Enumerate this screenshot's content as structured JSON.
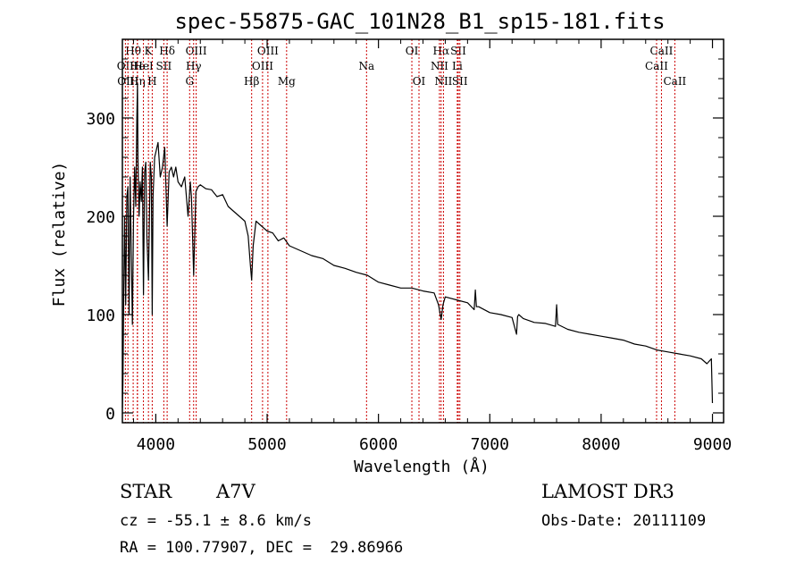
{
  "chart_data": {
    "type": "line",
    "title": "spec-55875-GAC_101N28_B1_sp15-181.fits",
    "xlabel": "Wavelength (Å)",
    "ylabel": "Flux (relative)",
    "xlim": [
      3700,
      9100
    ],
    "ylim": [
      -10,
      380
    ],
    "xticks": [
      4000,
      5000,
      6000,
      7000,
      8000,
      9000
    ],
    "yticks": [
      0,
      100,
      200,
      300
    ],
    "grid": false,
    "line_color": "#000000",
    "marker_color": "#cc0000",
    "series": [
      {
        "name": "spectrum",
        "x": [
          3700,
          3705,
          3712,
          3720,
          3730,
          3740,
          3750,
          3760,
          3770,
          3780,
          3790,
          3800,
          3810,
          3820,
          3830,
          3836,
          3840,
          3850,
          3860,
          3870,
          3880,
          3889,
          3900,
          3910,
          3920,
          3934,
          3950,
          3960,
          3968,
          3975,
          3990,
          4000,
          4020,
          4040,
          4060,
          4080,
          4102,
          4120,
          4140,
          4160,
          4180,
          4200,
          4230,
          4260,
          4290,
          4310,
          4320,
          4340,
          4360,
          4380,
          4400,
          4450,
          4500,
          4550,
          4600,
          4650,
          4700,
          4750,
          4800,
          4830,
          4850,
          4861,
          4875,
          4900,
          4950,
          5000,
          5050,
          5100,
          5150,
          5200,
          5300,
          5400,
          5500,
          5600,
          5700,
          5800,
          5900,
          6000,
          6100,
          6200,
          6300,
          6400,
          6500,
          6540,
          6563,
          6580,
          6600,
          6700,
          6800,
          6860,
          6870,
          6880,
          6900,
          7000,
          7100,
          7200,
          7240,
          7250,
          7260,
          7300,
          7400,
          7500,
          7590,
          7600,
          7610,
          7700,
          7800,
          7900,
          8000,
          8100,
          8200,
          8300,
          8400,
          8500,
          8600,
          8700,
          8800,
          8900,
          8950,
          8990,
          9000
        ],
        "values": [
          5,
          30,
          120,
          200,
          110,
          220,
          230,
          100,
          240,
          160,
          90,
          200,
          250,
          210,
          300,
          335,
          260,
          200,
          235,
          215,
          250,
          120,
          245,
          255,
          180,
          135,
          255,
          240,
          100,
          220,
          260,
          265,
          275,
          240,
          250,
          270,
          190,
          245,
          250,
          240,
          250,
          235,
          230,
          240,
          200,
          235,
          220,
          140,
          225,
          230,
          232,
          228,
          227,
          220,
          222,
          210,
          205,
          200,
          195,
          180,
          150,
          135,
          170,
          195,
          190,
          185,
          183,
          175,
          178,
          170,
          165,
          160,
          157,
          150,
          147,
          143,
          140,
          133,
          130,
          127,
          127,
          124,
          122,
          110,
          95,
          110,
          118,
          115,
          112,
          105,
          125,
          108,
          108,
          102,
          100,
          97,
          80,
          98,
          100,
          96,
          92,
          91,
          88,
          110,
          90,
          85,
          82,
          80,
          78,
          76,
          74,
          70,
          68,
          64,
          62,
          60,
          58,
          55,
          50,
          55,
          10
        ]
      }
    ],
    "line_markers": [
      {
        "label": "Hθ",
        "wave": 3797,
        "row": 1
      },
      {
        "label": "OII",
        "wave": 3727,
        "row": 2
      },
      {
        "label": "OIII",
        "wave": 3750,
        "row": 3
      },
      {
        "label": "He",
        "wave": 3835,
        "row": 2
      },
      {
        "label": "Hη",
        "wave": 3835,
        "row": 3
      },
      {
        "label": "K",
        "wave": 3934,
        "row": 1
      },
      {
        "label": "HeI",
        "wave": 3889,
        "row": 2
      },
      {
        "label": "H",
        "wave": 3968,
        "row": 3
      },
      {
        "label": "Hδ",
        "wave": 4102,
        "row": 1
      },
      {
        "label": "SII",
        "wave": 4072,
        "row": 2
      },
      {
        "label": "OIII",
        "wave": 4363,
        "row": 1
      },
      {
        "label": "Hγ",
        "wave": 4340,
        "row": 2
      },
      {
        "label": "G",
        "wave": 4304,
        "row": 3
      },
      {
        "label": "Hβ",
        "wave": 4861,
        "row": 3
      },
      {
        "label": "OIII",
        "wave": 5007,
        "row": 1
      },
      {
        "label": "OIII",
        "wave": 4959,
        "row": 2
      },
      {
        "label": "Mg",
        "wave": 5175,
        "row": 3
      },
      {
        "label": "Na",
        "wave": 5893,
        "row": 2
      },
      {
        "label": "OI",
        "wave": 6300,
        "row": 1
      },
      {
        "label": "OI",
        "wave": 6364,
        "row": 3
      },
      {
        "label": "Hα",
        "wave": 6563,
        "row": 1
      },
      {
        "label": "SII",
        "wave": 6717,
        "row": 1
      },
      {
        "label": "NII",
        "wave": 6548,
        "row": 2
      },
      {
        "label": "Li",
        "wave": 6708,
        "row": 2
      },
      {
        "label": "NII",
        "wave": 6584,
        "row": 3
      },
      {
        "label": "SII",
        "wave": 6731,
        "row": 3
      },
      {
        "label": "CaII",
        "wave": 8542,
        "row": 1
      },
      {
        "label": "CaII",
        "wave": 8498,
        "row": 2
      },
      {
        "label": "CaII",
        "wave": 8662,
        "row": 3
      }
    ]
  },
  "info": {
    "class_label": "STAR",
    "subclass": "A7V",
    "survey": "LAMOST DR3",
    "cz": "cz = -55.1 ± 8.6 km/s",
    "obs_date": "Obs-Date: 20111109",
    "coords": "RA = 100.77907, DEC =  29.86966"
  }
}
